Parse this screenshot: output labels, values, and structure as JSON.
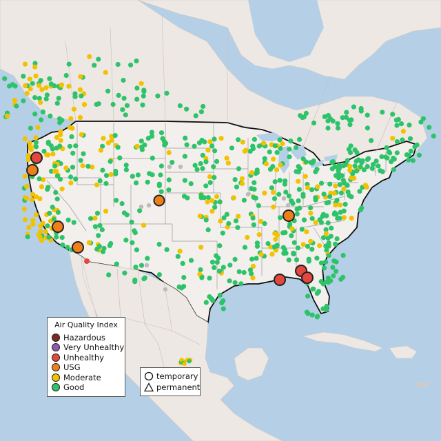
{
  "legend": {
    "title": "Air Quality Index",
    "categories": [
      {
        "label": "Hazardous",
        "color": "#7a2a21"
      },
      {
        "label": "Very Unhealthy",
        "color": "#8e5ab0"
      },
      {
        "label": "Unhealthy",
        "color": "#e3473d"
      },
      {
        "label": "USG",
        "color": "#ef7f18"
      },
      {
        "label": "Moderate",
        "color": "#f2c200"
      },
      {
        "label": "Good",
        "color": "#2ec36a"
      }
    ]
  },
  "shape_legend": {
    "temporary": "temporary",
    "permanent": "permanent"
  },
  "colors": {
    "water": "#b5d0e6",
    "land_us": "#f3efec",
    "land_other": "#eee8e4",
    "border": "#111111",
    "state_lines": "#9a9a9a",
    "no_data": "#bbbbbb"
  }
}
